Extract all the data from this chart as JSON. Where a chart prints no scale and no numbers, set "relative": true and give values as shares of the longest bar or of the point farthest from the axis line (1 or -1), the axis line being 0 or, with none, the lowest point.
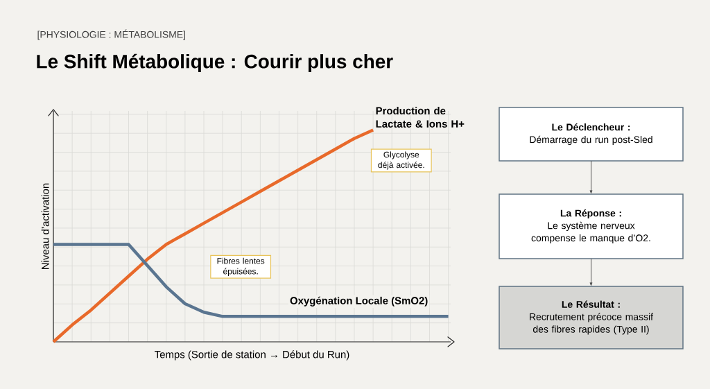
{
  "chart_data": [
    {
      "type": "line",
      "title": "Le Shift Métabolique : Courir plus cher",
      "subtitle": "[PHYSIOLOGIE : MÉTABOLISME]",
      "xlabel": "Temps (Sortie de station → Début du Run)",
      "ylabel": "Niveau d’activation",
      "relative": true,
      "grid": true,
      "legend": false,
      "marker": "none",
      "line_style": "solid",
      "categories": [
        null,
        null,
        null,
        null,
        null,
        null,
        null,
        null,
        null,
        null,
        null,
        null,
        null,
        null,
        null,
        null,
        null,
        null,
        null,
        null,
        null,
        null
      ],
      "series": [
        {
          "name": "Production de Lactate & Ions H+",
          "color": "#e8692a",
          "values": [
            0,
            0.08,
            0.15,
            0.23,
            0.31,
            0.39,
            0.46,
            0.51,
            0.56,
            0.61,
            0.66,
            0.71,
            0.76,
            0.81,
            0.86,
            0.91,
            0.96,
            1.0,
            null,
            null,
            null,
            null
          ]
        },
        {
          "name": "Oxygénation Locale (SmO2)",
          "color": "#5a7590",
          "values": [
            0.46,
            0.46,
            0.46,
            0.46,
            0.46,
            0.36,
            0.26,
            0.18,
            0.14,
            0.12,
            0.12,
            0.12,
            0.12,
            0.12,
            0.12,
            0.12,
            0.12,
            0.12,
            0.12,
            0.12,
            0.12,
            0.12
          ]
        }
      ],
      "annotations": [
        "Glycolyse déjà activée.",
        "Fibres lentes épuisées."
      ]
    },
    {
      "type": "other",
      "annotations": [
        "Le Déclencheur :",
        "Démarrage du run post-Sled",
        "La Réponse :",
        "Le système nerveux compense le manque d’O2.",
        "Le Résultat :",
        "Recrutement précoce massif des fibres rapides (Type II)"
      ]
    }
  ]
}
